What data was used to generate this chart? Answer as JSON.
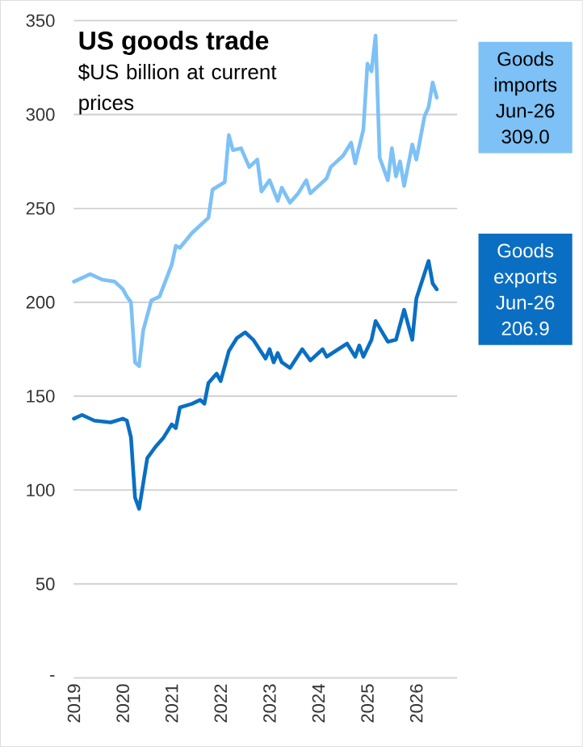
{
  "chart_data": {
    "type": "line",
    "title": "US goods trade",
    "subtitle": "$US billion at current prices",
    "series": [
      {
        "name": "Goods imports",
        "color": "#7dc1f6",
        "x": [
          "2019-01",
          "2019-05",
          "2019-08",
          "2019-11",
          "2020-01",
          "2020-02",
          "2020-03",
          "2020-04",
          "2020-05",
          "2020-06",
          "2020-08",
          "2020-10",
          "2021-01",
          "2021-02",
          "2021-03",
          "2021-06",
          "2021-10",
          "2021-11",
          "2022-02",
          "2022-03",
          "2022-04",
          "2022-06",
          "2022-08",
          "2022-10",
          "2022-11",
          "2023-01",
          "2023-03",
          "2023-04",
          "2023-06",
          "2023-08",
          "2023-10",
          "2023-11",
          "2024-01",
          "2024-03",
          "2024-04",
          "2024-07",
          "2024-09",
          "2024-10",
          "2024-12",
          "2025-01",
          "2025-02",
          "2025-03",
          "2025-04",
          "2025-06",
          "2025-07",
          "2025-08",
          "2025-09",
          "2025-10",
          "2025-12",
          "2026-01",
          "2026-03",
          "2026-04",
          "2026-05",
          "2026-06"
        ],
        "values": [
          211,
          215,
          212,
          211,
          207,
          203,
          200,
          168,
          166,
          185,
          201,
          203,
          220,
          230,
          229,
          237,
          245,
          260,
          264,
          289,
          281,
          282,
          272,
          276,
          259,
          265,
          254,
          261,
          253,
          258,
          265,
          258,
          262,
          266,
          272,
          278,
          285,
          274,
          292,
          327,
          323,
          342,
          277,
          265,
          282,
          267,
          275,
          262,
          284,
          276,
          299,
          304,
          317,
          309.0
        ]
      },
      {
        "name": "Goods exports",
        "color": "#0a6fc2",
        "x": [
          "2019-01",
          "2019-03",
          "2019-06",
          "2019-10",
          "2020-01",
          "2020-02",
          "2020-03",
          "2020-04",
          "2020-05",
          "2020-07",
          "2020-09",
          "2020-11",
          "2021-01",
          "2021-02",
          "2021-03",
          "2021-06",
          "2021-08",
          "2021-09",
          "2021-10",
          "2021-12",
          "2022-01",
          "2022-03",
          "2022-05",
          "2022-07",
          "2022-09",
          "2022-12",
          "2023-01",
          "2023-02",
          "2023-03",
          "2023-04",
          "2023-06",
          "2023-09",
          "2023-11",
          "2024-02",
          "2024-03",
          "2024-08",
          "2024-10",
          "2024-11",
          "2024-12",
          "2025-02",
          "2025-03",
          "2025-06",
          "2025-08",
          "2025-10",
          "2025-12",
          "2026-01",
          "2026-04",
          "2026-05",
          "2026-06"
        ],
        "values": [
          138,
          140,
          137,
          136,
          138,
          137,
          128,
          96,
          90,
          117,
          123,
          128,
          135,
          133,
          144,
          146,
          148,
          146,
          157,
          162,
          158,
          174,
          181,
          184,
          180,
          170,
          175,
          168,
          173,
          168,
          165,
          175,
          169,
          175,
          171,
          178,
          171,
          177,
          171,
          180,
          190,
          179,
          180,
          196,
          180,
          202,
          222,
          210,
          206.9
        ]
      }
    ],
    "annotations": [
      "Jun-26 309.0",
      "Jun-26 206.9"
    ],
    "xlim": [
      "2019-01",
      "2026-11"
    ],
    "ylim": [
      0,
      350
    ],
    "xticks": [
      "2019",
      "2020",
      "2021",
      "2022",
      "2023",
      "2024",
      "2025",
      "2026"
    ],
    "yticks": [
      {
        "value": 0,
        "label": "-"
      },
      50,
      100,
      150,
      200,
      250,
      300,
      350
    ],
    "grid": "y"
  }
}
